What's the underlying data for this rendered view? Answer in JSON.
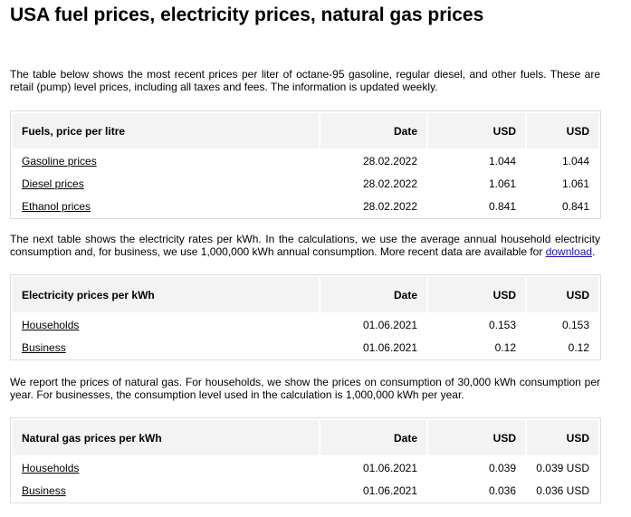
{
  "title": "USA fuel prices, electricity prices, natural gas prices",
  "intro": "The table below shows the most recent prices per liter of octane-95 gasoline, regular diesel, and other fuels. These are retail (pump) level prices, including all taxes and fees. The information is updated weekly.",
  "fuel_table": {
    "header": [
      "Fuels, price per litre",
      "Date",
      "USD",
      "USD"
    ],
    "rows": [
      [
        "Gasoline prices",
        "28.02.2022",
        "1.044",
        "1.044"
      ],
      [
        "Diesel prices",
        "28.02.2022",
        "1.061",
        "1.061"
      ],
      [
        "Ethanol prices",
        "28.02.2022",
        "0.841",
        "0.841"
      ]
    ]
  },
  "electricity_text": {
    "before": "The next table shows the electricity rates per kWh. In the calculations, we use the average annual household electricity consumption and, for business, we use 1,000,000 kWh annual consumption. More recent data are available for ",
    "link": "download",
    "after": "."
  },
  "electricity_table": {
    "header": [
      "Electricity prices per kWh",
      "Date",
      "USD",
      "USD"
    ],
    "rows": [
      [
        "Households",
        "01.06.2021",
        "0.153",
        "0.153"
      ],
      [
        "Business",
        "01.06.2021",
        "0.12",
        "0.12"
      ]
    ]
  },
  "gas_text": "We report the prices of natural gas. For households, we show the prices on consumption of 30,000 kWh consumption per year. For businesses, the consumption level used in the calculation is 1,000,000 kWh per year.",
  "gas_table": {
    "header": [
      "Natural gas prices per kWh",
      "Date",
      "USD",
      "USD"
    ],
    "rows": [
      [
        "Households",
        "01.06.2021",
        "0.039",
        "0.039 USD"
      ],
      [
        "Business",
        "01.06.2021",
        "0.036",
        "0.036 USD"
      ]
    ]
  }
}
